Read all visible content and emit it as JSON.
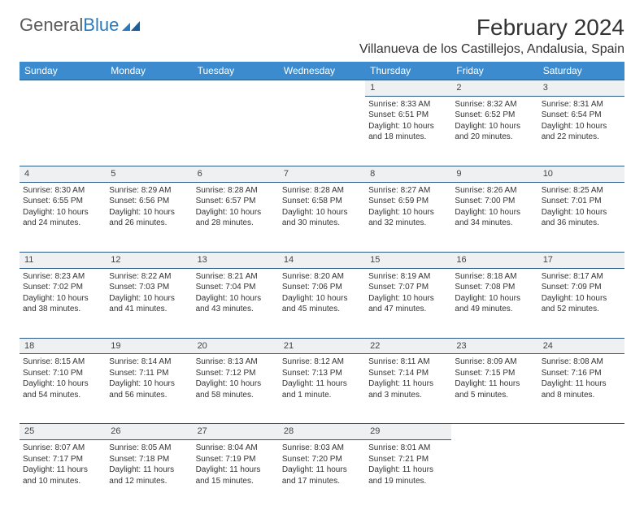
{
  "logo": {
    "text1": "General",
    "text2": "Blue"
  },
  "title": "February 2024",
  "location": "Villanueva de los Castillejos, Andalusia, Spain",
  "colors": {
    "header_bg": "#3b8bce",
    "header_text": "#ffffff",
    "daynum_bg": "#eef0f2",
    "border": "#2a5a8a",
    "body_text": "#333333"
  },
  "weekdays": [
    "Sunday",
    "Monday",
    "Tuesday",
    "Wednesday",
    "Thursday",
    "Friday",
    "Saturday"
  ],
  "weeks": [
    {
      "nums": [
        "",
        "",
        "",
        "",
        "1",
        "2",
        "3"
      ],
      "cells": [
        null,
        null,
        null,
        null,
        {
          "sunrise": "Sunrise: 8:33 AM",
          "sunset": "Sunset: 6:51 PM",
          "day1": "Daylight: 10 hours",
          "day2": "and 18 minutes."
        },
        {
          "sunrise": "Sunrise: 8:32 AM",
          "sunset": "Sunset: 6:52 PM",
          "day1": "Daylight: 10 hours",
          "day2": "and 20 minutes."
        },
        {
          "sunrise": "Sunrise: 8:31 AM",
          "sunset": "Sunset: 6:54 PM",
          "day1": "Daylight: 10 hours",
          "day2": "and 22 minutes."
        }
      ]
    },
    {
      "nums": [
        "4",
        "5",
        "6",
        "7",
        "8",
        "9",
        "10"
      ],
      "cells": [
        {
          "sunrise": "Sunrise: 8:30 AM",
          "sunset": "Sunset: 6:55 PM",
          "day1": "Daylight: 10 hours",
          "day2": "and 24 minutes."
        },
        {
          "sunrise": "Sunrise: 8:29 AM",
          "sunset": "Sunset: 6:56 PM",
          "day1": "Daylight: 10 hours",
          "day2": "and 26 minutes."
        },
        {
          "sunrise": "Sunrise: 8:28 AM",
          "sunset": "Sunset: 6:57 PM",
          "day1": "Daylight: 10 hours",
          "day2": "and 28 minutes."
        },
        {
          "sunrise": "Sunrise: 8:28 AM",
          "sunset": "Sunset: 6:58 PM",
          "day1": "Daylight: 10 hours",
          "day2": "and 30 minutes."
        },
        {
          "sunrise": "Sunrise: 8:27 AM",
          "sunset": "Sunset: 6:59 PM",
          "day1": "Daylight: 10 hours",
          "day2": "and 32 minutes."
        },
        {
          "sunrise": "Sunrise: 8:26 AM",
          "sunset": "Sunset: 7:00 PM",
          "day1": "Daylight: 10 hours",
          "day2": "and 34 minutes."
        },
        {
          "sunrise": "Sunrise: 8:25 AM",
          "sunset": "Sunset: 7:01 PM",
          "day1": "Daylight: 10 hours",
          "day2": "and 36 minutes."
        }
      ]
    },
    {
      "nums": [
        "11",
        "12",
        "13",
        "14",
        "15",
        "16",
        "17"
      ],
      "cells": [
        {
          "sunrise": "Sunrise: 8:23 AM",
          "sunset": "Sunset: 7:02 PM",
          "day1": "Daylight: 10 hours",
          "day2": "and 38 minutes."
        },
        {
          "sunrise": "Sunrise: 8:22 AM",
          "sunset": "Sunset: 7:03 PM",
          "day1": "Daylight: 10 hours",
          "day2": "and 41 minutes."
        },
        {
          "sunrise": "Sunrise: 8:21 AM",
          "sunset": "Sunset: 7:04 PM",
          "day1": "Daylight: 10 hours",
          "day2": "and 43 minutes."
        },
        {
          "sunrise": "Sunrise: 8:20 AM",
          "sunset": "Sunset: 7:06 PM",
          "day1": "Daylight: 10 hours",
          "day2": "and 45 minutes."
        },
        {
          "sunrise": "Sunrise: 8:19 AM",
          "sunset": "Sunset: 7:07 PM",
          "day1": "Daylight: 10 hours",
          "day2": "and 47 minutes."
        },
        {
          "sunrise": "Sunrise: 8:18 AM",
          "sunset": "Sunset: 7:08 PM",
          "day1": "Daylight: 10 hours",
          "day2": "and 49 minutes."
        },
        {
          "sunrise": "Sunrise: 8:17 AM",
          "sunset": "Sunset: 7:09 PM",
          "day1": "Daylight: 10 hours",
          "day2": "and 52 minutes."
        }
      ]
    },
    {
      "nums": [
        "18",
        "19",
        "20",
        "21",
        "22",
        "23",
        "24"
      ],
      "cells": [
        {
          "sunrise": "Sunrise: 8:15 AM",
          "sunset": "Sunset: 7:10 PM",
          "day1": "Daylight: 10 hours",
          "day2": "and 54 minutes."
        },
        {
          "sunrise": "Sunrise: 8:14 AM",
          "sunset": "Sunset: 7:11 PM",
          "day1": "Daylight: 10 hours",
          "day2": "and 56 minutes."
        },
        {
          "sunrise": "Sunrise: 8:13 AM",
          "sunset": "Sunset: 7:12 PM",
          "day1": "Daylight: 10 hours",
          "day2": "and 58 minutes."
        },
        {
          "sunrise": "Sunrise: 8:12 AM",
          "sunset": "Sunset: 7:13 PM",
          "day1": "Daylight: 11 hours",
          "day2": "and 1 minute."
        },
        {
          "sunrise": "Sunrise: 8:11 AM",
          "sunset": "Sunset: 7:14 PM",
          "day1": "Daylight: 11 hours",
          "day2": "and 3 minutes."
        },
        {
          "sunrise": "Sunrise: 8:09 AM",
          "sunset": "Sunset: 7:15 PM",
          "day1": "Daylight: 11 hours",
          "day2": "and 5 minutes."
        },
        {
          "sunrise": "Sunrise: 8:08 AM",
          "sunset": "Sunset: 7:16 PM",
          "day1": "Daylight: 11 hours",
          "day2": "and 8 minutes."
        }
      ]
    },
    {
      "nums": [
        "25",
        "26",
        "27",
        "28",
        "29",
        "",
        ""
      ],
      "cells": [
        {
          "sunrise": "Sunrise: 8:07 AM",
          "sunset": "Sunset: 7:17 PM",
          "day1": "Daylight: 11 hours",
          "day2": "and 10 minutes."
        },
        {
          "sunrise": "Sunrise: 8:05 AM",
          "sunset": "Sunset: 7:18 PM",
          "day1": "Daylight: 11 hours",
          "day2": "and 12 minutes."
        },
        {
          "sunrise": "Sunrise: 8:04 AM",
          "sunset": "Sunset: 7:19 PM",
          "day1": "Daylight: 11 hours",
          "day2": "and 15 minutes."
        },
        {
          "sunrise": "Sunrise: 8:03 AM",
          "sunset": "Sunset: 7:20 PM",
          "day1": "Daylight: 11 hours",
          "day2": "and 17 minutes."
        },
        {
          "sunrise": "Sunrise: 8:01 AM",
          "sunset": "Sunset: 7:21 PM",
          "day1": "Daylight: 11 hours",
          "day2": "and 19 minutes."
        },
        null,
        null
      ]
    }
  ]
}
